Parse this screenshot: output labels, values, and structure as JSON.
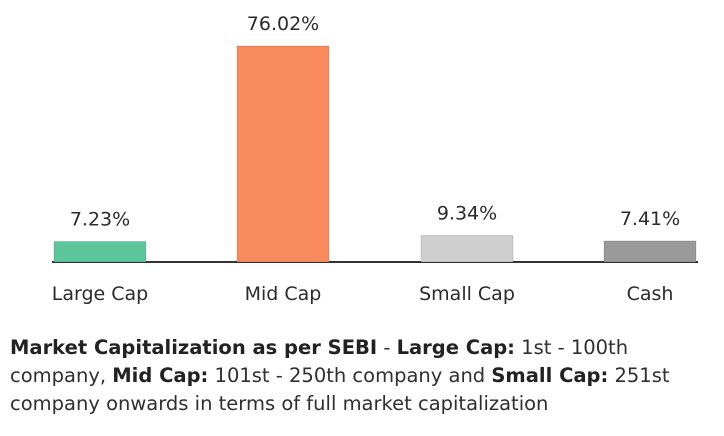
{
  "chart_data": {
    "type": "bar",
    "categories": [
      "Large Cap",
      "Mid Cap",
      "Small Cap",
      "Cash"
    ],
    "values": [
      7.23,
      76.02,
      9.34,
      7.41
    ],
    "value_labels": [
      "7.23%",
      "76.02%",
      "9.34%",
      "7.41%"
    ],
    "colors": [
      "#5cc69a",
      "#f98a5e",
      "#cfcfcf",
      "#9a9a9a"
    ],
    "title": "",
    "xlabel": "",
    "ylabel": "",
    "ylim": [
      0,
      100
    ],
    "grid": false,
    "legend": "none"
  },
  "footnote": {
    "lead": "Market Capitalization as per SEBI",
    "sep1": " - ",
    "large_label": "Large Cap:",
    "large_text": " 1st - 100th company, ",
    "mid_label": "Mid Cap:",
    "mid_text": " 101st - 250th company and ",
    "small_label": "Small Cap:",
    "small_text": " 251st company onwards in terms of full market capitalization"
  }
}
